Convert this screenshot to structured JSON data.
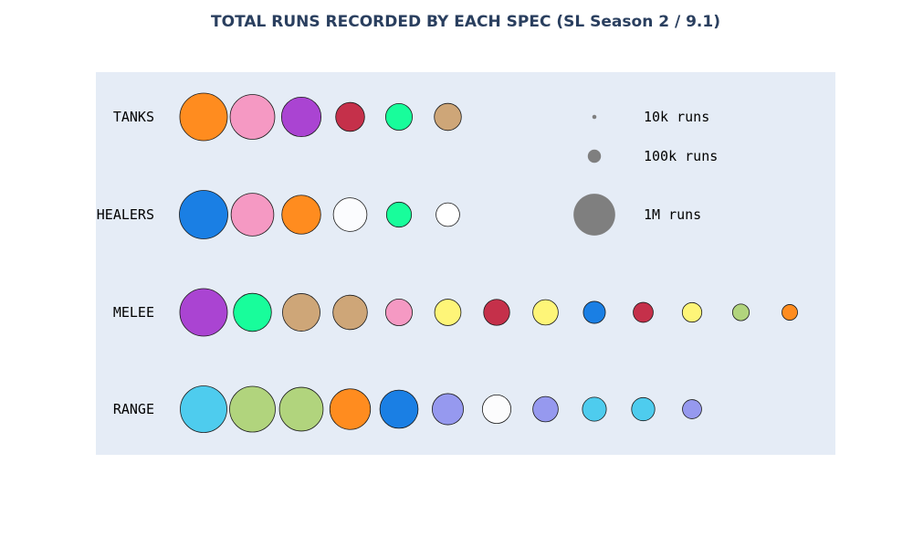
{
  "chart_data": {
    "type": "scatter",
    "title": "TOTAL RUNS RECORDED BY EACH SPEC (SL Season 2 / 9.1)",
    "xlabel": "",
    "ylabel": "",
    "grid": false,
    "legend_position": "top-right",
    "size_legend": [
      {
        "label": "10k runs",
        "runs": 10000,
        "color": "#7f7f7f"
      },
      {
        "label": "100k runs",
        "runs": 100000,
        "color": "#7f7f7f"
      },
      {
        "label": "1M runs",
        "runs": 1000000,
        "color": "#7f7f7f"
      }
    ],
    "rows": [
      {
        "label": "TANKS",
        "specs": [
          {
            "runs": 1300000,
            "color": "#FF8C1F"
          },
          {
            "runs": 1150000,
            "color": "#F599C3"
          },
          {
            "runs": 900000,
            "color": "#AA44D2"
          },
          {
            "runs": 480000,
            "color": "#C5304A"
          },
          {
            "runs": 410000,
            "color": "#18FD9B"
          },
          {
            "runs": 420000,
            "color": "#CEA678"
          }
        ]
      },
      {
        "label": "HEALERS",
        "specs": [
          {
            "runs": 1350000,
            "color": "#1A7FE4"
          },
          {
            "runs": 1050000,
            "color": "#F599C3"
          },
          {
            "runs": 870000,
            "color": "#FF8C1F"
          },
          {
            "runs": 650000,
            "color": "#FBFCFE"
          },
          {
            "runs": 360000,
            "color": "#18FD9B"
          },
          {
            "runs": 320000,
            "color": "#FFFFFF"
          }
        ]
      },
      {
        "label": "MELEE",
        "specs": [
          {
            "runs": 1300000,
            "color": "#AA44D2"
          },
          {
            "runs": 830000,
            "color": "#18FD9B"
          },
          {
            "runs": 810000,
            "color": "#CEA678"
          },
          {
            "runs": 680000,
            "color": "#CEA678"
          },
          {
            "runs": 410000,
            "color": "#F599C3"
          },
          {
            "runs": 400000,
            "color": "#FEF578"
          },
          {
            "runs": 390000,
            "color": "#C5304A"
          },
          {
            "runs": 370000,
            "color": "#FEF578"
          },
          {
            "runs": 280000,
            "color": "#1A7FE4"
          },
          {
            "runs": 230000,
            "color": "#C5304A"
          },
          {
            "runs": 220000,
            "color": "#FEF578"
          },
          {
            "runs": 160000,
            "color": "#B1D47D"
          },
          {
            "runs": 140000,
            "color": "#FF8C1F"
          }
        ]
      },
      {
        "label": "RANGE",
        "specs": [
          {
            "runs": 1250000,
            "color": "#4ECCEE"
          },
          {
            "runs": 1200000,
            "color": "#B1D47D"
          },
          {
            "runs": 1100000,
            "color": "#B1D47D"
          },
          {
            "runs": 950000,
            "color": "#FF8C1F"
          },
          {
            "runs": 840000,
            "color": "#1A7FE4"
          },
          {
            "runs": 560000,
            "color": "#9699EF"
          },
          {
            "runs": 470000,
            "color": "#FCFCFD"
          },
          {
            "runs": 370000,
            "color": "#9699EF"
          },
          {
            "runs": 330000,
            "color": "#4ECCEE"
          },
          {
            "runs": 310000,
            "color": "#4ECCEE"
          },
          {
            "runs": 210000,
            "color": "#9699EF"
          }
        ]
      }
    ]
  }
}
